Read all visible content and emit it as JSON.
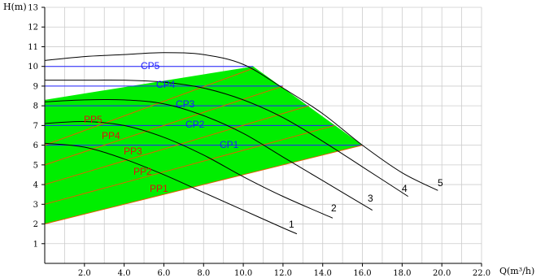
{
  "chart_data": {
    "type": "line",
    "title": "",
    "xlabel": "Q(m³/h)",
    "ylabel": "H(m)",
    "xlim": [
      0,
      22
    ],
    "ylim": [
      0,
      13
    ],
    "x_ticks": [
      "2.0",
      "4.0",
      "6.0",
      "8.0",
      "10.0",
      "12.0",
      "14.0",
      "16.0",
      "18.0",
      "20.0",
      "22.0"
    ],
    "y_ticks": [
      "1",
      "2",
      "3",
      "4",
      "5",
      "6",
      "7",
      "8",
      "9",
      "10",
      "11",
      "12",
      "13"
    ],
    "grid": true,
    "operating_region": {
      "color": "#00ee00",
      "points": [
        [
          0,
          2.0
        ],
        [
          0,
          8.3
        ],
        [
          10.5,
          10.0
        ],
        [
          16.0,
          6.0
        ]
      ]
    },
    "constant_pressure": [
      {
        "name": "CP5",
        "y": 10.0,
        "x_end": 10.5
      },
      {
        "name": "CP4",
        "y": 9.0,
        "x_end": 12.0
      },
      {
        "name": "CP3",
        "y": 8.0,
        "x_end": 13.3
      },
      {
        "name": "CP2",
        "y": 7.0,
        "x_end": 14.6
      },
      {
        "name": "CP1",
        "y": 6.0,
        "x_end": 16.0
      }
    ],
    "proportional_pressure": [
      {
        "name": "PP5",
        "y0": 6.0,
        "y1": 9.9,
        "x_end": 10.5
      },
      {
        "name": "PP4",
        "y0": 5.0,
        "y1": 9.0,
        "x_end": 12.0
      },
      {
        "name": "PP3",
        "y0": 4.0,
        "y1": 8.0,
        "x_end": 13.3
      },
      {
        "name": "PP2",
        "y0": 3.0,
        "y1": 7.0,
        "x_end": 14.6
      },
      {
        "name": "PP1",
        "y0": 2.0,
        "y1": 6.0,
        "x_end": 16.0
      }
    ],
    "series": [
      {
        "name": "1",
        "x": [
          0,
          2,
          4,
          6,
          8,
          10,
          12,
          12.7
        ],
        "y": [
          6.1,
          5.9,
          5.3,
          4.5,
          3.6,
          2.7,
          1.8,
          1.5
        ]
      },
      {
        "name": "2",
        "x": [
          0,
          2,
          4,
          6,
          8,
          10,
          12,
          14.5
        ],
        "y": [
          7.1,
          7.2,
          7.0,
          6.4,
          5.5,
          4.4,
          3.4,
          2.3
        ]
      },
      {
        "name": "3",
        "x": [
          0,
          2,
          4,
          6,
          8,
          10,
          12,
          14,
          16.5
        ],
        "y": [
          8.2,
          8.3,
          8.3,
          8.1,
          7.5,
          6.6,
          5.4,
          4.2,
          2.7
        ]
      },
      {
        "name": "4",
        "x": [
          0,
          2,
          4,
          6,
          8,
          10,
          12,
          14,
          16,
          18.3
        ],
        "y": [
          9.3,
          9.3,
          9.3,
          9.2,
          8.9,
          8.3,
          7.4,
          6.2,
          4.9,
          3.4
        ]
      },
      {
        "name": "5",
        "x": [
          0,
          2,
          4,
          6,
          8,
          10,
          12,
          14,
          16,
          18,
          19.8
        ],
        "y": [
          10.3,
          10.5,
          10.6,
          10.7,
          10.6,
          10.1,
          8.9,
          7.6,
          6.0,
          4.6,
          3.7
        ]
      }
    ],
    "colors": {
      "region": "#00ee00",
      "cp_line": "#2020ff",
      "pp_line": "#e06000",
      "curve": "#000000",
      "grid": "#cccccc",
      "cp_label": "#1a1aff",
      "pp_label": "#e01010"
    }
  }
}
